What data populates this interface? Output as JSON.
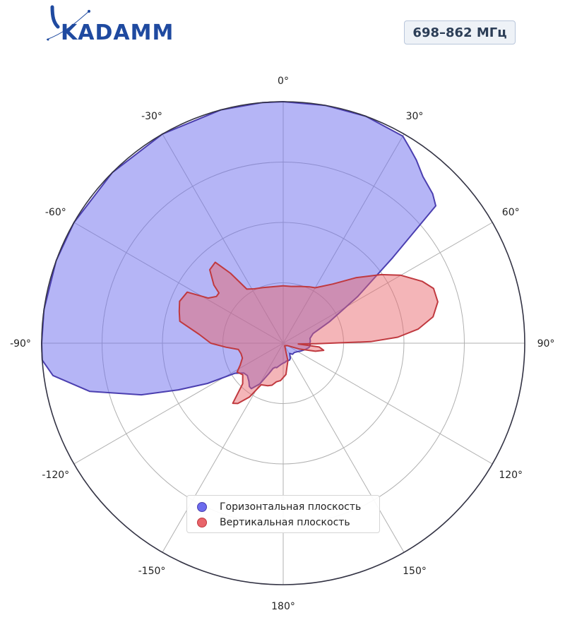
{
  "header": {
    "logo_text": "KADAMM",
    "freq_label": "698–862 МГц"
  },
  "colors": {
    "horizontal_fill": "#6c6cee",
    "horizontal_stroke": "#4b3fb0",
    "vertical_fill": "#e8646a",
    "vertical_stroke": "#c0393f",
    "grid": "#b0b0b0",
    "frame": "#333344",
    "logo_blue": "#1f4aa0"
  },
  "chart_data": {
    "type": "polar",
    "title": "",
    "angle_ticks": [
      "0°",
      "30°",
      "60°",
      "90°",
      "120°",
      "150°",
      "180°",
      "-150°",
      "-120°",
      "-90°",
      "-60°",
      "-30°"
    ],
    "rlim": [
      0,
      4
    ],
    "grid": true,
    "legend_placement": "bottom-center",
    "series": [
      {
        "name": "Горизонтальная плоскость",
        "color": "#6c6cee",
        "points": [
          [
            0,
            4.0
          ],
          [
            10,
            4.0
          ],
          [
            20,
            4.0
          ],
          [
            30,
            3.96
          ],
          [
            33,
            3.85
          ],
          [
            36,
            3.75
          ],
          [
            40,
            3.6
          ],
          [
            45,
            3.5
          ],
          [
            48,
            3.4
          ],
          [
            52,
            2.3
          ],
          [
            58,
            1.45
          ],
          [
            65,
            0.85
          ],
          [
            72,
            0.52
          ],
          [
            80,
            0.45
          ],
          [
            86,
            0.45
          ],
          [
            90,
            0.44
          ],
          [
            95,
            0.45
          ],
          [
            100,
            0.43
          ],
          [
            106,
            0.38
          ],
          [
            114,
            0.32
          ],
          [
            122,
            0.27
          ],
          [
            130,
            0.24
          ],
          [
            140,
            0.24
          ],
          [
            148,
            0.2
          ],
          [
            155,
            0.28
          ],
          [
            160,
            0.3
          ],
          [
            166,
            0.3
          ],
          [
            170,
            0.3
          ],
          [
            175,
            0.32
          ],
          [
            180,
            0.33
          ],
          [
            185,
            0.35
          ],
          [
            190,
            0.38
          ],
          [
            195,
            0.42
          ],
          [
            198,
            0.42
          ],
          [
            202,
            0.45
          ],
          [
            205,
            0.55
          ],
          [
            210,
            0.78
          ],
          [
            215,
            0.92
          ],
          [
            218,
            0.91
          ],
          [
            222,
            0.85
          ],
          [
            228,
            0.8
          ],
          [
            233,
            0.82
          ],
          [
            238,
            0.94
          ],
          [
            242,
            1.42
          ],
          [
            246,
            1.9
          ],
          [
            250,
            2.5
          ],
          [
            256,
            3.3
          ],
          [
            262,
            3.85
          ],
          [
            266,
            4.0
          ],
          [
            270,
            4.0
          ],
          [
            278,
            4.0
          ],
          [
            290,
            4.0
          ],
          [
            300,
            4.0
          ],
          [
            315,
            4.0
          ],
          [
            330,
            4.0
          ],
          [
            345,
            4.0
          ],
          [
            355,
            4.0
          ],
          [
            360,
            4.0
          ]
        ]
      },
      {
        "name": "Вертикальная плоскость",
        "color": "#e8646a",
        "points": [
          [
            0,
            0.95
          ],
          [
            8,
            0.95
          ],
          [
            16,
            0.98
          ],
          [
            25,
            1.03
          ],
          [
            30,
            1.06
          ],
          [
            40,
            1.28
          ],
          [
            48,
            1.62
          ],
          [
            55,
            1.98
          ],
          [
            60,
            2.25
          ],
          [
            66,
            2.52
          ],
          [
            70,
            2.65
          ],
          [
            75,
            2.65
          ],
          [
            80,
            2.52
          ],
          [
            84,
            2.25
          ],
          [
            87,
            1.9
          ],
          [
            89,
            1.45
          ],
          [
            91,
            0.55
          ],
          [
            93,
            0.25
          ],
          [
            96,
            0.6
          ],
          [
            100,
            0.68
          ],
          [
            104,
            0.55
          ],
          [
            110,
            0.28
          ],
          [
            120,
            0.08
          ],
          [
            150,
            0.05
          ],
          [
            165,
            0.3
          ],
          [
            175,
            0.52
          ],
          [
            184,
            0.62
          ],
          [
            190,
            0.65
          ],
          [
            195,
            0.72
          ],
          [
            200,
            0.75
          ],
          [
            208,
            0.78
          ],
          [
            212,
            1.05
          ],
          [
            217,
            1.25
          ],
          [
            220,
            1.3
          ],
          [
            225,
            0.95
          ],
          [
            232,
            0.85
          ],
          [
            238,
            0.9
          ],
          [
            243,
            0.8
          ],
          [
            250,
            0.72
          ],
          [
            256,
            0.72
          ],
          [
            262,
            0.75
          ],
          [
            266,
            0.95
          ],
          [
            270,
            1.2
          ],
          [
            276,
            1.4
          ],
          [
            282,
            1.75
          ],
          [
            287,
            1.8
          ],
          [
            292,
            1.85
          ],
          [
            298,
            1.8
          ],
          [
            301,
            1.45
          ],
          [
            305,
            1.35
          ],
          [
            308,
            1.35
          ],
          [
            310,
            1.5
          ],
          [
            315,
            1.72
          ],
          [
            320,
            1.75
          ],
          [
            323,
            1.45
          ],
          [
            326,
            1.08
          ],
          [
            332,
            1.02
          ],
          [
            340,
            0.98
          ],
          [
            350,
            0.95
          ],
          [
            360,
            0.95
          ]
        ]
      }
    ]
  }
}
